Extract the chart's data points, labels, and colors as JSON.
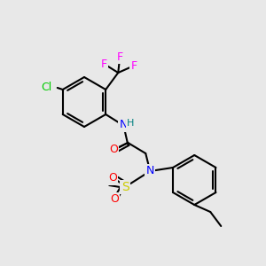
{
  "bg_color": "#e8e8e8",
  "bond_color": "#000000",
  "figsize": [
    3.0,
    3.0
  ],
  "dpi": 100,
  "atom_colors": {
    "F": "#ff00ff",
    "Cl": "#00cc00",
    "N": "#0000ff",
    "O": "#ff0000",
    "S": "#cccc00",
    "H": "#008080",
    "C": "#000000"
  }
}
